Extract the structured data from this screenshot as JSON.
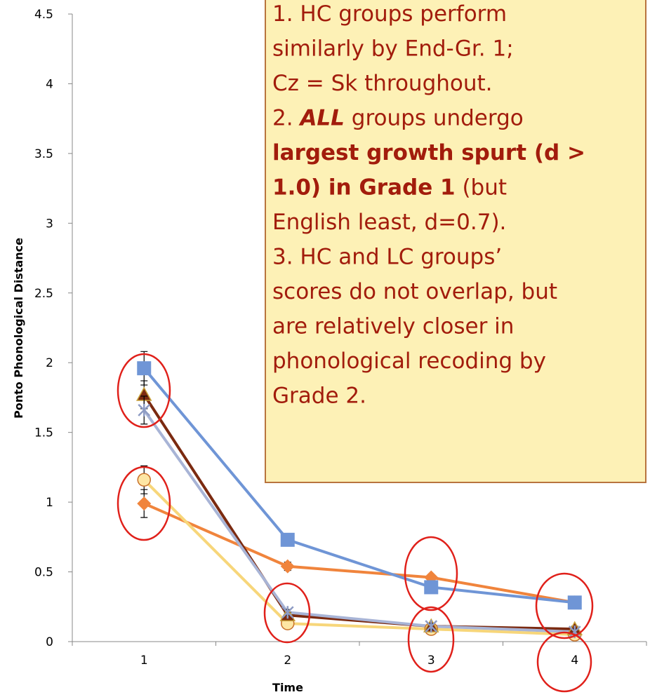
{
  "chart_data": {
    "type": "line",
    "xlabel": "Time",
    "ylabel": "Ponto Phonological Distance",
    "categories": [
      "1",
      "2",
      "3",
      "4"
    ],
    "ylim": [
      0,
      4.5
    ],
    "yticks": [
      0,
      0.5,
      1,
      1.5,
      2,
      2.5,
      3,
      3.5,
      4,
      4.5
    ],
    "series": [
      {
        "color": "#f0843c",
        "marker": "diamond",
        "values": [
          0.99,
          0.54,
          0.46,
          0.28
        ],
        "errors": [
          0.1,
          0.03,
          0.02,
          0.02
        ]
      },
      {
        "color": "#f7d67a",
        "marker": "circle",
        "values": [
          1.16,
          0.13,
          0.09,
          0.05
        ],
        "errors": [
          0.1,
          0.02,
          0.02,
          0.02
        ]
      },
      {
        "color": "#7b2a10",
        "marker": "triangle",
        "values": [
          1.77,
          0.19,
          0.11,
          0.09
        ],
        "errors": [
          0.1,
          0.02,
          0.02,
          0.02
        ]
      },
      {
        "color": "#a8b4d6",
        "marker": "x",
        "values": [
          1.66,
          0.21,
          0.11,
          0.07
        ],
        "errors": [
          0.1,
          0.02,
          0.02,
          0.02
        ]
      },
      {
        "color": "#6f95d6",
        "marker": "square",
        "values": [
          1.96,
          0.73,
          0.39,
          0.28
        ],
        "errors": [
          0.12,
          0.02,
          0.02,
          0.02
        ]
      }
    ]
  },
  "annotation": {
    "lines": [
      [
        {
          "text": "1. HC groups perform",
          "style": "normal"
        }
      ],
      [
        {
          "text": "similarly by End-Gr. 1;",
          "style": "normal"
        }
      ],
      [
        {
          "text": "Cz = Sk throughout.",
          "style": "normal"
        }
      ],
      [
        {
          "text": "2. ",
          "style": "normal"
        },
        {
          "text": "ALL",
          "style": "bold-italic"
        },
        {
          "text": " groups undergo",
          "style": "normal"
        }
      ],
      [
        {
          "text": "largest growth spurt (d >",
          "style": "bold"
        }
      ],
      [
        {
          "text": "1.0) in Grade 1",
          "style": "bold"
        },
        {
          "text": " (but",
          "style": "normal"
        }
      ],
      [
        {
          "text": "English least, d=0.7).",
          "style": "normal"
        }
      ],
      [
        {
          "text": "3. HC and LC groups’",
          "style": "normal"
        }
      ],
      [
        {
          "text": "scores do not overlap, but",
          "style": "normal"
        }
      ],
      [
        {
          "text": "are relatively closer in",
          "style": "normal"
        }
      ],
      [
        {
          "text": "phonological recoding by",
          "style": "normal"
        }
      ],
      [
        {
          "text": "Grade 2.",
          "style": "normal"
        }
      ]
    ]
  }
}
